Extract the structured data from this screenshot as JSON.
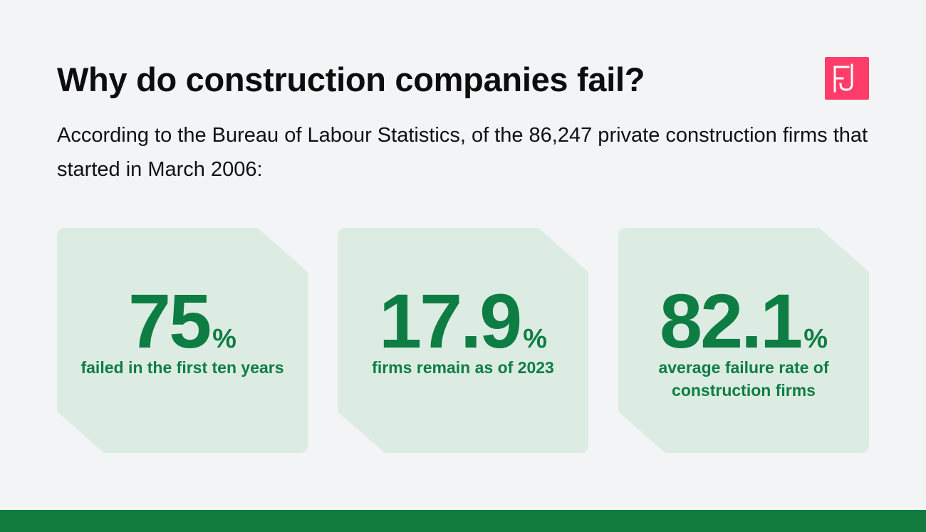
{
  "header": {
    "title": "Why do construction companies fail?",
    "intro": "According to the Bureau of Labour Statistics, of the 86,247 private construction firms that started in March 2006:"
  },
  "logo": {
    "icon": "brand-logo-icon",
    "color": "#ff3d68"
  },
  "stats": [
    {
      "value": "75",
      "unit": "%",
      "label": "failed in the first ten years"
    },
    {
      "value": "17.9",
      "unit": "%",
      "label": "firms remain as of 2023"
    },
    {
      "value": "82.1",
      "unit": "%",
      "label": "average failure rate of construction firms"
    }
  ],
  "colors": {
    "accent_green": "#0d7d43",
    "card_background": "#dcece3",
    "footer_bar": "#117c3e",
    "page_background": "#f3f4f6"
  }
}
